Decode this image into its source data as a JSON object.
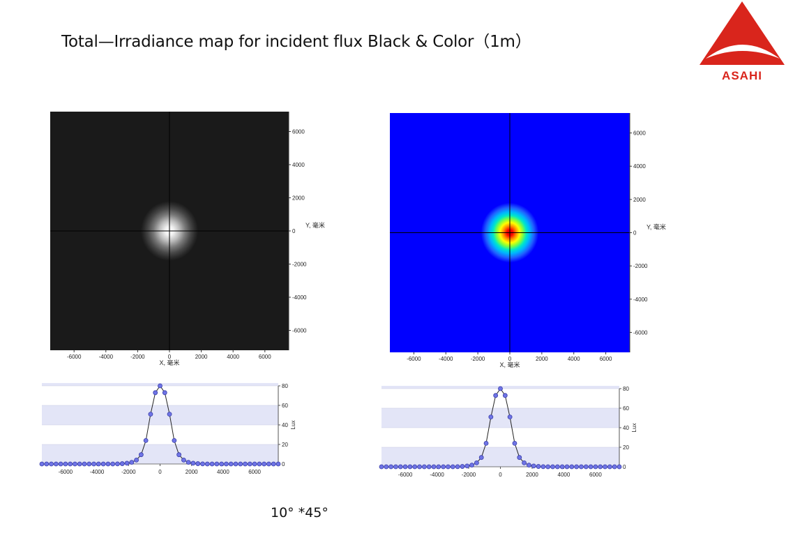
{
  "page": {
    "title": "Total—Irradiance map for incident flux Black & Color（1m）",
    "caption": "10° *45°",
    "logo_text": "ASAHI",
    "logo_color": "#d9251c"
  },
  "chart_data": [
    {
      "type": "heatmap",
      "colormap": "grayscale",
      "background_color": "#1a1a1a",
      "xlabel": "X, 毫米",
      "ylabel": "Y, 毫米",
      "xlim": [
        -7500,
        7500
      ],
      "ylim": [
        -7200,
        7200
      ],
      "xticks": [
        -6000,
        -4000,
        -2000,
        0,
        2000,
        4000,
        6000
      ],
      "yticks": [
        6000,
        4000,
        2000,
        0,
        -2000,
        -4000,
        -6000
      ],
      "spot_center": [
        0,
        0
      ],
      "spot_radius": 1800,
      "crosshair": true
    },
    {
      "type": "heatmap",
      "colormap": "jet",
      "background_color": "#0000ff",
      "xlabel": "X, 毫米",
      "ylabel": "Y, 毫米",
      "xlim": [
        -7500,
        7500
      ],
      "ylim": [
        -7200,
        7200
      ],
      "xticks": [
        -6000,
        -4000,
        -2000,
        0,
        2000,
        4000,
        6000
      ],
      "yticks": [
        6000,
        4000,
        2000,
        0,
        -2000,
        -4000,
        -6000
      ],
      "spot_center": [
        0,
        0
      ],
      "spot_radius": 1800,
      "crosshair": true
    },
    {
      "type": "line",
      "ylabel": "Lux",
      "xlim": [
        -7500,
        7500
      ],
      "ylim": [
        0,
        80
      ],
      "xticks": [
        -6000,
        -4000,
        -2000,
        0,
        2000,
        4000,
        6000
      ],
      "yticks": [
        0,
        20,
        40,
        60,
        80
      ],
      "band_color": "#e3e5f7",
      "marker_color": "#6f74e6",
      "x": [
        -7500,
        -7200,
        -6900,
        -6600,
        -6300,
        -6000,
        -5700,
        -5400,
        -5100,
        -4800,
        -4500,
        -4200,
        -3900,
        -3600,
        -3300,
        -3000,
        -2700,
        -2400,
        -2100,
        -1800,
        -1500,
        -1200,
        -900,
        -600,
        -300,
        0,
        300,
        600,
        900,
        1200,
        1500,
        1800,
        2100,
        2400,
        2700,
        3000,
        3300,
        3600,
        3900,
        4200,
        4500,
        4800,
        5100,
        5400,
        5700,
        6000,
        6300,
        6600,
        6900,
        7200,
        7500
      ],
      "series": [
        {
          "values": [
            0,
            0,
            0,
            0,
            0,
            0,
            0,
            0,
            0,
            0,
            0,
            0,
            0,
            0,
            0,
            0,
            0.1,
            0.3,
            0.8,
            1.7,
            4,
            9.5,
            24,
            51,
            73,
            80,
            73,
            51,
            24,
            9.5,
            4,
            1.7,
            0.8,
            0.3,
            0.1,
            0,
            0,
            0,
            0,
            0,
            0,
            0,
            0,
            0,
            0,
            0,
            0,
            0,
            0,
            0,
            0
          ]
        }
      ]
    },
    {
      "type": "line",
      "ylabel": "Lux",
      "xlim": [
        -7500,
        7500
      ],
      "ylim": [
        0,
        80
      ],
      "xticks": [
        -6000,
        -4000,
        -2000,
        0,
        2000,
        4000,
        6000
      ],
      "yticks": [
        0,
        20,
        40,
        60,
        80
      ],
      "band_color": "#e3e5f7",
      "marker_color": "#6f74e6",
      "x": [
        -7500,
        -7200,
        -6900,
        -6600,
        -6300,
        -6000,
        -5700,
        -5400,
        -5100,
        -4800,
        -4500,
        -4200,
        -3900,
        -3600,
        -3300,
        -3000,
        -2700,
        -2400,
        -2100,
        -1800,
        -1500,
        -1200,
        -900,
        -600,
        -300,
        0,
        300,
        600,
        900,
        1200,
        1500,
        1800,
        2100,
        2400,
        2700,
        3000,
        3300,
        3600,
        3900,
        4200,
        4500,
        4800,
        5100,
        5400,
        5700,
        6000,
        6300,
        6600,
        6900,
        7200,
        7500
      ],
      "series": [
        {
          "values": [
            0,
            0,
            0,
            0,
            0,
            0,
            0,
            0,
            0,
            0,
            0,
            0,
            0,
            0,
            0,
            0,
            0.1,
            0.3,
            0.8,
            1.7,
            4,
            9.5,
            24,
            51,
            73,
            80,
            73,
            51,
            24,
            9.5,
            4,
            1.7,
            0.8,
            0.3,
            0.1,
            0,
            0,
            0,
            0,
            0,
            0,
            0,
            0,
            0,
            0,
            0,
            0,
            0,
            0,
            0,
            0
          ]
        }
      ]
    }
  ]
}
